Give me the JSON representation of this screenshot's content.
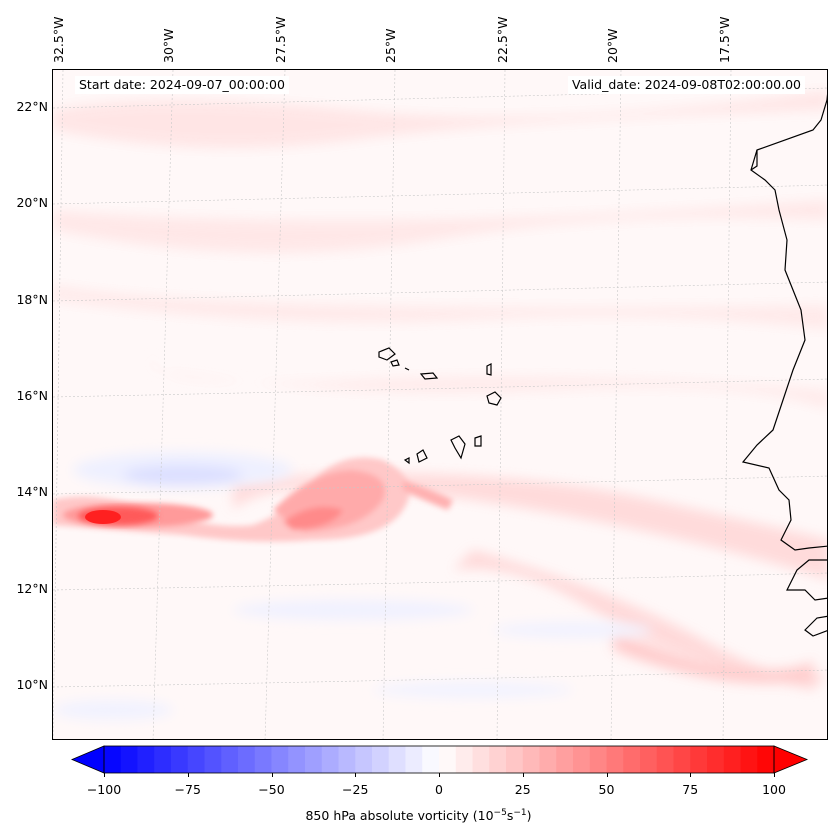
{
  "header": {
    "start_date": "Start date: 2024-09-07_00:00:00",
    "valid_date": "Valid_date: 2024-09-08T02:00:00.00"
  },
  "map": {
    "longitude_labels": [
      "32.5°W",
      "30°W",
      "27.5°W",
      "25°W",
      "22.5°W",
      "20°W",
      "17.5°W"
    ],
    "latitude_labels": [
      "22°N",
      "20°N",
      "18°N",
      "16°N",
      "14°N",
      "12°N",
      "10°N"
    ],
    "features": [
      "vorticity-maximum-near-13.5N-32W",
      "positive-vorticity-band-along-13N",
      "negative-vorticity-patch-near-14N-30W",
      "cape-verde-islands",
      "west-african-coastline"
    ]
  },
  "colorbar": {
    "tick_labels": [
      "−100",
      "−75",
      "−50",
      "−25",
      "0",
      "25",
      "50",
      "75",
      "100"
    ],
    "label_text": "850 hPa absolute vorticity (10",
    "label_exp1": "−5",
    "label_mid": "s",
    "label_exp2": "−1",
    "label_end": ")",
    "min_color": "#0000ff",
    "mid_color": "#ffffff",
    "max_color": "#ff0000"
  }
}
